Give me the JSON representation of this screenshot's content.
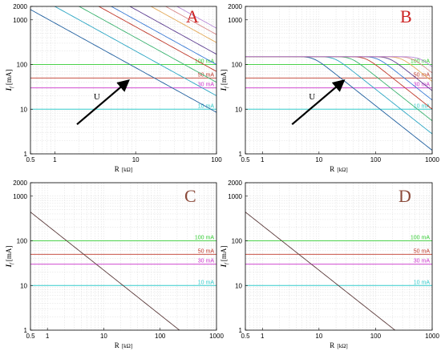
{
  "figure": {
    "ylabel_main": "I",
    "ylabel_sub": "f",
    "ylabel_unit": "[mA]",
    "colors": {
      "green": "#33cc33",
      "red": "#c0392b",
      "magenta": "#cc33cc",
      "cyan": "#33cccc",
      "letter": "#cc2222",
      "letter_muted": "#8b4a3a",
      "arrow": "#000000"
    }
  },
  "chart_data": [
    {
      "type": "line",
      "panel": "A",
      "xscale": "log",
      "yscale": "log",
      "xlim": [
        0.5,
        100
      ],
      "ylim": [
        1,
        2000
      ],
      "xticks": [
        "0.5",
        "1",
        "10",
        "100"
      ],
      "yticks": [
        "1",
        "10",
        "100",
        "1000",
        "2000"
      ],
      "xlabel": "R",
      "xunit": "[kΩ]",
      "grid": true,
      "annotation": "U",
      "thresholds": [
        {
          "label": "100 mA",
          "value": 100,
          "color": "#33cc33"
        },
        {
          "label": "50 mA",
          "value": 50,
          "color": "#c0392b"
        },
        {
          "label": "30 mA",
          "value": 30,
          "color": "#cc33cc"
        },
        {
          "label": "10 mA",
          "value": 10,
          "color": "#33cccc"
        }
      ],
      "curves": {
        "model": "U/R",
        "k": [
          8.5,
          20,
          40,
          70,
          100,
          170,
          310,
          470,
          650
        ],
        "colors": [
          "#1f5f9f",
          "#2ca6c4",
          "#3cb371",
          "#c0392b",
          "#3a7bd5",
          "#5e3f91",
          "#e3a857",
          "#d98a8a",
          "#b88ad8"
        ]
      }
    },
    {
      "type": "line",
      "panel": "B",
      "xscale": "log",
      "yscale": "log",
      "xlim": [
        0.5,
        1000
      ],
      "ylim": [
        1,
        2000
      ],
      "xticks": [
        "0.5",
        "1",
        "10",
        "100",
        "1000"
      ],
      "yticks": [
        "1",
        "10",
        "100",
        "1000",
        "2000"
      ],
      "xlabel": "R",
      "xunit": "[kΩ]",
      "grid": true,
      "annotation": "U",
      "thresholds": [
        {
          "label": "100 mA",
          "value": 100,
          "color": "#33cc33"
        },
        {
          "label": "50 mA",
          "value": 50,
          "color": "#c0392b"
        },
        {
          "label": "30 mA",
          "value": 30,
          "color": "#cc33cc"
        },
        {
          "label": "10 mA",
          "value": 10,
          "color": "#33cccc"
        }
      ],
      "curves": {
        "model": "min(Imax, U/R)",
        "imax": 150,
        "k": [
          12,
          28,
          55,
          100,
          160,
          260,
          420,
          650,
          900
        ],
        "colors": [
          "#1f5f9f",
          "#2ca6c4",
          "#3cb371",
          "#c0392b",
          "#3a7bd5",
          "#5e3f91",
          "#e3a857",
          "#d98a8a",
          "#b88ad8"
        ]
      }
    },
    {
      "type": "line",
      "panel": "C",
      "xscale": "log",
      "yscale": "log",
      "xlim": [
        0.5,
        1000
      ],
      "ylim": [
        1,
        2000
      ],
      "xticks": [
        "0.5",
        "1",
        "10",
        "100",
        "1000"
      ],
      "yticks": [
        "1",
        "10",
        "100",
        "1000",
        "2000"
      ],
      "xlabel": "R",
      "xunit": "[kΩ]",
      "grid": true,
      "thresholds": [
        {
          "label": "100 mA",
          "value": 100,
          "color": "#33cc33"
        },
        {
          "label": "50 mA",
          "value": 50,
          "color": "#c0392b"
        },
        {
          "label": "30 mA",
          "value": 30,
          "color": "#cc33cc"
        },
        {
          "label": "10 mA",
          "value": 10,
          "color": "#33cccc"
        }
      ],
      "curves": {
        "model": "U/R",
        "k": [
          2.2
        ],
        "colors": [
          "#5a3a3a"
        ]
      }
    },
    {
      "type": "line",
      "panel": "D",
      "xscale": "log",
      "yscale": "log",
      "xlim": [
        0.5,
        1000
      ],
      "ylim": [
        1,
        2000
      ],
      "xticks": [
        "0.5",
        "1",
        "10",
        "100",
        "1000"
      ],
      "yticks": [
        "1",
        "10",
        "100",
        "1000",
        "2000"
      ],
      "xlabel": "R",
      "xunit": "[kΩ]",
      "grid": true,
      "thresholds": [
        {
          "label": "100 mA",
          "value": 100,
          "color": "#33cc33"
        },
        {
          "label": "50 mA",
          "value": 50,
          "color": "#c0392b"
        },
        {
          "label": "30 mA",
          "value": 30,
          "color": "#cc33cc"
        },
        {
          "label": "10 mA",
          "value": 10,
          "color": "#33cccc"
        }
      ],
      "curves": {
        "model": "U/R",
        "k": [
          2.2
        ],
        "colors": [
          "#5a3a3a"
        ]
      }
    }
  ]
}
